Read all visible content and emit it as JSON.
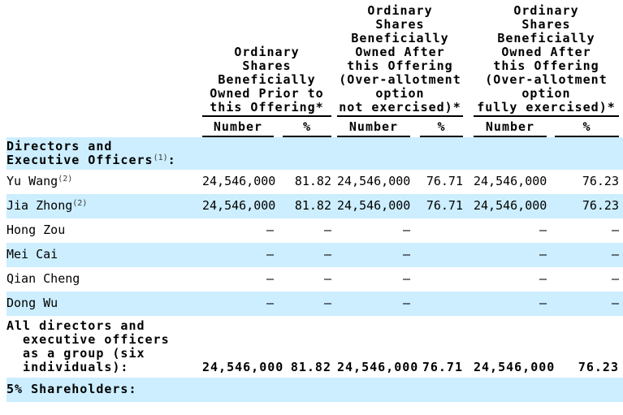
{
  "table": {
    "column_groups": [
      {
        "label_lines": [
          "Ordinary",
          "Shares",
          "Beneficially",
          "Owned Prior to",
          "this Offering*"
        ]
      },
      {
        "label_lines": [
          "Ordinary",
          "Shares",
          "Beneficially",
          "Owned After",
          "this Offering",
          "(Over-allotment",
          "option",
          "not exercised)*"
        ]
      },
      {
        "label_lines": [
          "Ordinary",
          "Shares",
          "Beneficially",
          "Owned After",
          "this Offering",
          "(Over-allotment",
          "option",
          "fully exercised)*"
        ]
      }
    ],
    "sub_columns": [
      "Number",
      "%",
      "Number",
      "%",
      "Number",
      "%"
    ],
    "rows": [
      {
        "name_lines": [
          "Directors and",
          "Executive Officers"
        ],
        "sup": "(1)",
        "suffix": ":",
        "bold": true,
        "shaded": true,
        "values": [
          "",
          "",
          "",
          "",
          "",
          ""
        ]
      },
      {
        "name_lines": [
          "Yu Wang"
        ],
        "sup": "(2)",
        "suffix": "",
        "bold": false,
        "shaded": false,
        "values": [
          "24,546,000",
          "81.82",
          "24,546,000",
          "76.71",
          "24,546,000",
          "76.23"
        ]
      },
      {
        "name_lines": [
          "Jia Zhong"
        ],
        "sup": "(2)",
        "suffix": "",
        "bold": false,
        "shaded": true,
        "values": [
          "24,546,000",
          "81.82",
          "24,546,000",
          "76.71",
          "24,546,000",
          "76.23"
        ]
      },
      {
        "name_lines": [
          "Hong Zou"
        ],
        "sup": "",
        "suffix": "",
        "bold": false,
        "shaded": false,
        "values": [
          "—",
          "—",
          "—",
          "",
          "—",
          "—"
        ]
      },
      {
        "name_lines": [
          "Mei Cai"
        ],
        "sup": "",
        "suffix": "",
        "bold": false,
        "shaded": true,
        "values": [
          "—",
          "—",
          "—",
          "",
          "—",
          "—"
        ]
      },
      {
        "name_lines": [
          "Qian Cheng"
        ],
        "sup": "",
        "suffix": "",
        "bold": false,
        "shaded": false,
        "values": [
          "—",
          "—",
          "—",
          "",
          "—",
          "—"
        ]
      },
      {
        "name_lines": [
          "Dong Wu"
        ],
        "sup": "",
        "suffix": "",
        "bold": false,
        "shaded": true,
        "values": [
          "—",
          "—",
          "—",
          "",
          "—",
          "—"
        ]
      },
      {
        "name_lines": [
          "All directors and",
          "  executive officers",
          "  as a group (six",
          "  individuals):"
        ],
        "sup": "",
        "suffix": "",
        "bold": true,
        "shaded": false,
        "values": [
          "24,546,000",
          "81.82",
          "24,546,000",
          "76.71",
          "24,546,000",
          "76.23"
        ]
      },
      {
        "name_lines": [
          "5% Shareholders:"
        ],
        "sup": "",
        "suffix": "",
        "bold": true,
        "shaded": true,
        "values": [
          "",
          "",
          "",
          "",
          "",
          ""
        ]
      }
    ],
    "colors": {
      "row_highlight": "#CCEEFF",
      "rule": "#000000",
      "text": "#000000"
    }
  }
}
